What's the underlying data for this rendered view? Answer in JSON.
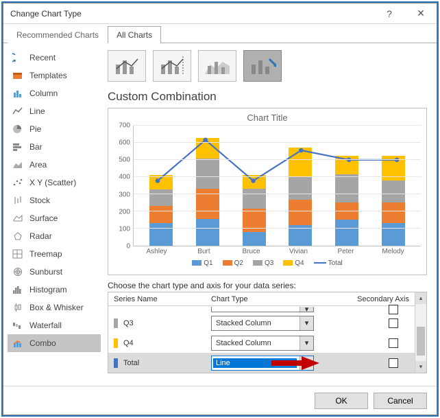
{
  "window": {
    "title": "Change Chart Type",
    "help": "?",
    "close": "✕"
  },
  "tabs": {
    "recommended": "Recommended Charts",
    "all": "All Charts",
    "active": "all"
  },
  "sidebar": {
    "items": [
      {
        "label": "Recent",
        "icon": "recent"
      },
      {
        "label": "Templates",
        "icon": "templates"
      },
      {
        "label": "Column",
        "icon": "column"
      },
      {
        "label": "Line",
        "icon": "line"
      },
      {
        "label": "Pie",
        "icon": "pie"
      },
      {
        "label": "Bar",
        "icon": "bar"
      },
      {
        "label": "Area",
        "icon": "area"
      },
      {
        "label": "X Y (Scatter)",
        "icon": "scatter"
      },
      {
        "label": "Stock",
        "icon": "stock"
      },
      {
        "label": "Surface",
        "icon": "surface"
      },
      {
        "label": "Radar",
        "icon": "radar"
      },
      {
        "label": "Treemap",
        "icon": "treemap"
      },
      {
        "label": "Sunburst",
        "icon": "sunburst"
      },
      {
        "label": "Histogram",
        "icon": "histogram"
      },
      {
        "label": "Box & Whisker",
        "icon": "box"
      },
      {
        "label": "Waterfall",
        "icon": "waterfall"
      },
      {
        "label": "Combo",
        "icon": "combo"
      }
    ],
    "selected": 16
  },
  "combo_tiles": {
    "selected": 3
  },
  "section_title": "Custom Combination",
  "chart": {
    "title": "Chart Title",
    "categories": [
      "Ashley",
      "Burt",
      "Bruce",
      "Vivian",
      "Peter",
      "Melody"
    ],
    "q1": [
      130,
      155,
      80,
      120,
      150,
      130
    ],
    "q2": [
      100,
      175,
      135,
      145,
      100,
      120
    ],
    "q3": [
      95,
      175,
      115,
      135,
      165,
      130
    ],
    "q4": [
      85,
      120,
      80,
      170,
      105,
      140
    ],
    "total": [
      410,
      625,
      410,
      570,
      520,
      520
    ],
    "colors": {
      "q1": "#5b9bd5",
      "q2": "#ed7d31",
      "q3": "#a5a5a5",
      "q4": "#ffc000",
      "total": "#4472c4"
    },
    "y_max": 700,
    "y_step": 100,
    "legend": [
      "Q1",
      "Q2",
      "Q3",
      "Q4",
      "Total"
    ]
  },
  "series_section": {
    "label": "Choose the chart type and axis for your data series:",
    "head": {
      "name": "Series Name",
      "type": "Chart Type",
      "axis": "Secondary Axis"
    },
    "rows": [
      {
        "name": "Q3",
        "color": "#a5a5a5",
        "chart_type": "Stacked Column",
        "secondary": false,
        "highlighted": false
      },
      {
        "name": "Q4",
        "color": "#ffc000",
        "chart_type": "Stacked Column",
        "secondary": false,
        "highlighted": false
      },
      {
        "name": "Total",
        "color": "#4472c4",
        "chart_type": "Line",
        "secondary": false,
        "highlighted": true
      }
    ]
  },
  "buttons": {
    "ok": "OK",
    "cancel": "Cancel"
  },
  "callout_arrow_color": "#c00000"
}
